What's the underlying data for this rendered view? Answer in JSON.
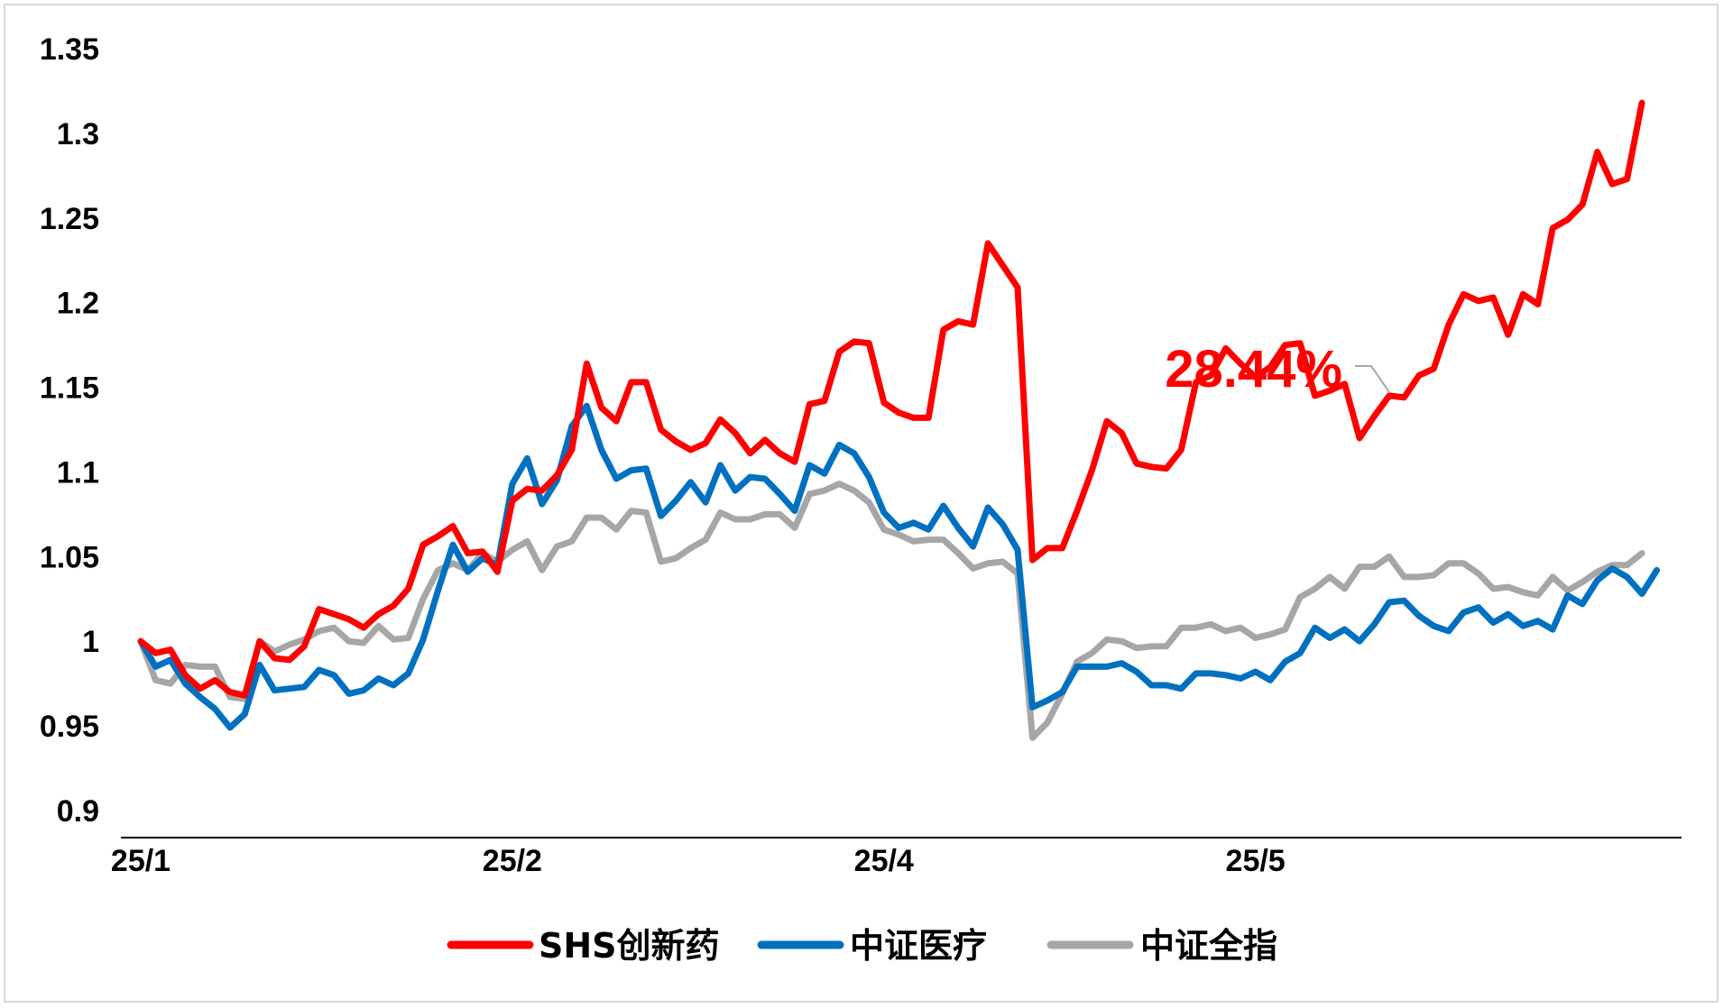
{
  "chart_data": {
    "type": "line",
    "title": "",
    "xlabel": "",
    "ylabel": "",
    "ylim": [
      0.9,
      1.35
    ],
    "yticks": [
      "0.9",
      "0.95",
      "1",
      "1.05",
      "1.1",
      "1.15",
      "1.2",
      "1.25",
      "1.3",
      "1.35"
    ],
    "xticks": [
      {
        "index": 0,
        "label": "25/1"
      },
      {
        "index": 25,
        "label": "25/2"
      },
      {
        "index": 50,
        "label": "25/4"
      },
      {
        "index": 75,
        "label": "25/5"
      }
    ],
    "grid": false,
    "legend_position": "bottom",
    "annotation": {
      "text": "28.44%",
      "series": 0,
      "point_index": 84,
      "color": "#ff0000"
    },
    "series": [
      {
        "name": "SHS创新药",
        "color": "#ff0000",
        "values": [
          1.0,
          0.993,
          0.995,
          0.98,
          0.972,
          0.977,
          0.97,
          0.968,
          1.0,
          0.99,
          0.989,
          0.997,
          1.019,
          1.016,
          1.013,
          1.008,
          1.016,
          1.021,
          1.031,
          1.057,
          1.062,
          1.068,
          1.052,
          1.053,
          1.041,
          1.083,
          1.09,
          1.089,
          1.098,
          1.113,
          1.164,
          1.138,
          1.13,
          1.153,
          1.153,
          1.125,
          1.118,
          1.113,
          1.117,
          1.131,
          1.123,
          1.111,
          1.119,
          1.111,
          1.106,
          1.14,
          1.142,
          1.171,
          1.177,
          1.176,
          1.141,
          1.135,
          1.132,
          1.132,
          1.184,
          1.189,
          1.187,
          1.235,
          1.222,
          1.209,
          1.048,
          1.055,
          1.055,
          1.077,
          1.101,
          1.13,
          1.123,
          1.105,
          1.103,
          1.102,
          1.113,
          1.153,
          1.157,
          1.173,
          1.164,
          1.156,
          1.162,
          1.175,
          1.176,
          1.145,
          1.148,
          1.152,
          1.12,
          1.133,
          1.145,
          1.144,
          1.157,
          1.161,
          1.187,
          1.205,
          1.201,
          1.203,
          1.181,
          1.205,
          1.199,
          1.244,
          1.249,
          1.258,
          1.289,
          1.27,
          1.273,
          1.318
        ]
      },
      {
        "name": "中证医疗",
        "color": "#0070c0",
        "values": [
          1.0,
          0.985,
          0.989,
          0.975,
          0.967,
          0.96,
          0.949,
          0.957,
          0.986,
          0.971,
          0.972,
          0.973,
          0.983,
          0.98,
          0.969,
          0.971,
          0.978,
          0.974,
          0.981,
          1.001,
          1.03,
          1.057,
          1.041,
          1.049,
          1.045,
          1.093,
          1.108,
          1.081,
          1.095,
          1.127,
          1.139,
          1.113,
          1.096,
          1.101,
          1.102,
          1.074,
          1.083,
          1.094,
          1.082,
          1.104,
          1.089,
          1.097,
          1.096,
          1.087,
          1.077,
          1.104,
          1.099,
          1.116,
          1.111,
          1.097,
          1.076,
          1.067,
          1.07,
          1.066,
          1.08,
          1.067,
          1.056,
          1.079,
          1.069,
          1.054,
          0.961,
          0.965,
          0.97,
          0.985,
          0.985,
          0.985,
          0.987,
          0.982,
          0.974,
          0.974,
          0.972,
          0.981,
          0.981,
          0.98,
          0.978,
          0.982,
          0.977,
          0.988,
          0.993,
          1.008,
          1.002,
          1.007,
          1.0,
          1.01,
          1.023,
          1.024,
          1.015,
          1.009,
          1.006,
          1.017,
          1.02,
          1.011,
          1.016,
          1.009,
          1.012,
          1.007,
          1.027,
          1.022,
          1.036,
          1.043,
          1.038,
          1.028,
          1.042
        ]
      },
      {
        "name": "中证全指",
        "color": "#a6a6a6",
        "values": [
          1.0,
          0.977,
          0.975,
          0.986,
          0.985,
          0.985,
          0.967,
          0.966,
          1.0,
          0.994,
          0.998,
          1.001,
          1.006,
          1.008,
          1.0,
          0.999,
          1.009,
          1.001,
          1.002,
          1.025,
          1.042,
          1.046,
          1.042,
          1.052,
          1.047,
          1.054,
          1.059,
          1.042,
          1.056,
          1.059,
          1.073,
          1.073,
          1.066,
          1.077,
          1.076,
          1.047,
          1.049,
          1.055,
          1.06,
          1.076,
          1.072,
          1.072,
          1.075,
          1.075,
          1.067,
          1.087,
          1.089,
          1.093,
          1.089,
          1.082,
          1.066,
          1.063,
          1.059,
          1.06,
          1.06,
          1.052,
          1.043,
          1.046,
          1.047,
          1.04,
          0.943,
          0.952,
          0.969,
          0.988,
          0.993,
          1.001,
          1.0,
          0.996,
          0.997,
          0.997,
          1.008,
          1.008,
          1.01,
          1.006,
          1.008,
          1.002,
          1.004,
          1.007,
          1.026,
          1.031,
          1.038,
          1.031,
          1.044,
          1.044,
          1.05,
          1.038,
          1.038,
          1.039,
          1.046,
          1.046,
          1.04,
          1.031,
          1.032,
          1.029,
          1.027,
          1.038,
          1.03,
          1.035,
          1.041,
          1.045,
          1.045,
          1.052
        ]
      }
    ]
  }
}
